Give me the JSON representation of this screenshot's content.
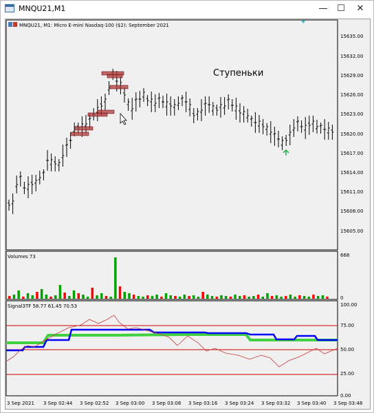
{
  "window": {
    "title": "MNQU21,M1",
    "minimize": "—",
    "maximize": "☐",
    "close": "✕"
  },
  "main_panel": {
    "header": "MNQU21, M1:  Micro E-mini Nasdaq-100 ($2): September 2021",
    "annotation": "Ступеньки",
    "price_ticks": [
      "15635.00",
      "15632.00",
      "15629.00",
      "15626.00",
      "15623.00",
      "15620.00",
      "15617.00",
      "15614.00",
      "15611.00",
      "15608.00",
      "15605.00"
    ]
  },
  "volume_panel": {
    "label": "Volumes 73",
    "max_label": "668",
    "zero_label": "0"
  },
  "signal_panel": {
    "label": "Signal3TF 58.77 61.45 70.53",
    "ticks": [
      "100.00",
      "75.00",
      "50.00",
      "25.00",
      "0.00"
    ]
  },
  "time_axis": [
    "3 Sep 2021",
    "3 Sep 02:44",
    "3 Sep 02:52",
    "3 Sep 03:00",
    "3 Sep 03:08",
    "3 Sep 03:16",
    "3 Sep 03:24",
    "3 Sep 03:32",
    "3 Sep 03:40",
    "3 Sep 03:48"
  ],
  "colors": {
    "bg": "#f0f0f0",
    "up_volume": "#00a000",
    "down_volume": "#ff0000",
    "signal_green": "#40d040",
    "signal_blue": "#0000ff",
    "signal_thin": "#c83c3c",
    "level_line": "#d00000",
    "zone": "#b03a3a"
  }
}
